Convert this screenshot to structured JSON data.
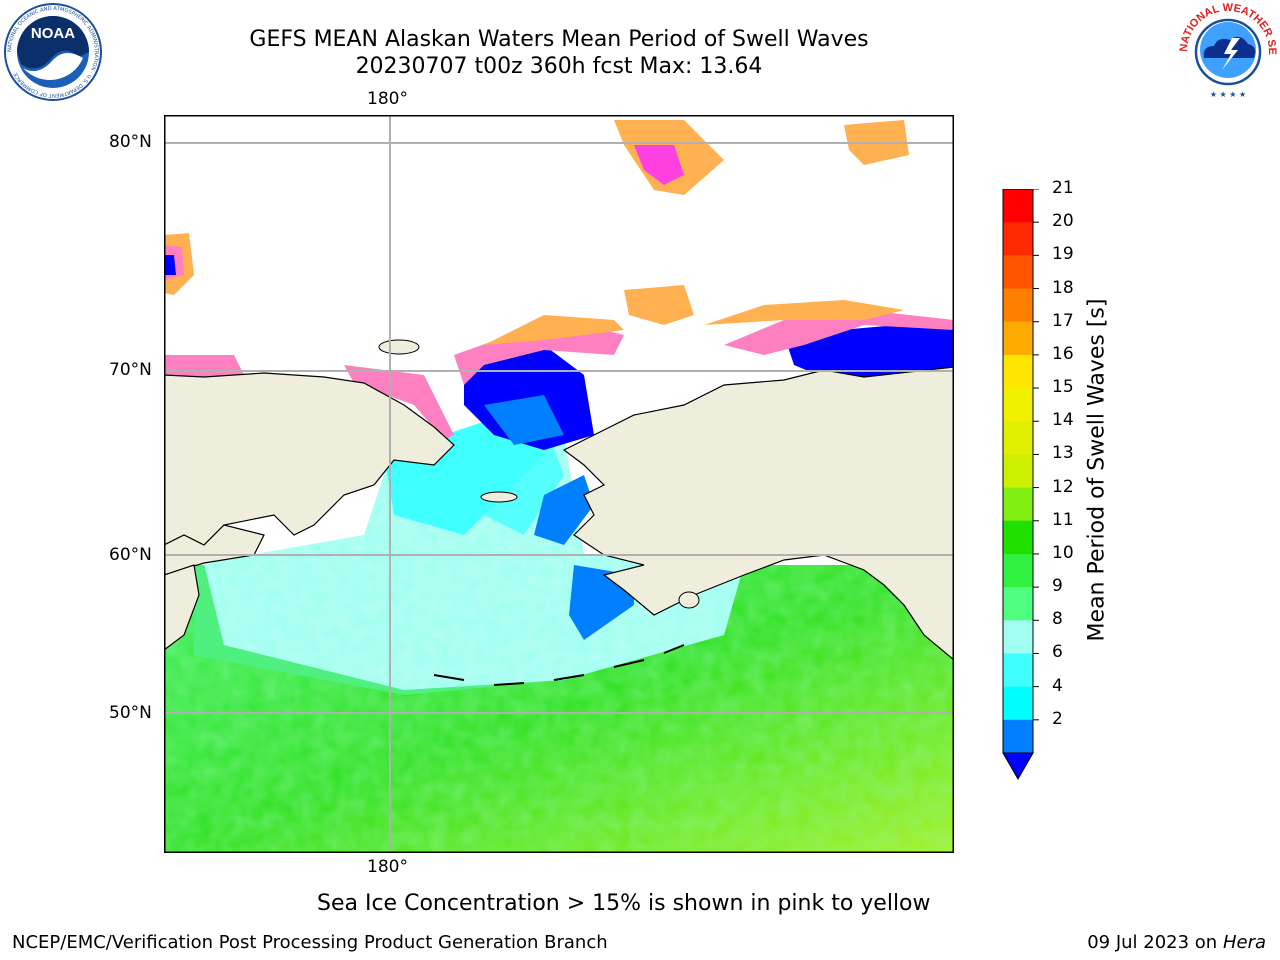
{
  "title": {
    "line1": "GEFS MEAN Alaskan Waters Mean Period of Swell Waves",
    "line2": "20230707 t00z 360h fcst   Max: 13.64"
  },
  "map": {
    "lon_label_top": "180°",
    "lon_label_bottom": "180°",
    "lat_labels": [
      "80°N",
      "70°N",
      "60°N",
      "50°N"
    ],
    "land_color": "#efeddc",
    "grid_color": "#b0b0b0"
  },
  "colorbar": {
    "label": "Mean Period of Swell Waves [s]",
    "ticks": [
      "21",
      "20",
      "19",
      "18",
      "17",
      "16",
      "15",
      "14",
      "13",
      "12",
      "11",
      "10",
      "9",
      "8",
      "6",
      "4",
      "2"
    ],
    "colors": [
      "#ff0000",
      "#ff2a00",
      "#ff5500",
      "#ff8000",
      "#ffaa00",
      "#ffe600",
      "#f0f000",
      "#e0f000",
      "#ccf000",
      "#80ee10",
      "#20e000",
      "#30f040",
      "#50ff80",
      "#a0fff0",
      "#40ffff",
      "#00ffff",
      "#0080ff"
    ],
    "extend_min_color": "#0000ff"
  },
  "caption": "Sea Ice Concentration > 15% is shown in pink to yellow",
  "footer": {
    "left": "NCEP/EMC/Verification Post Processing Product Generation Branch",
    "right_date": "09 Jul 2023 on ",
    "right_machine": "Hera"
  },
  "logos": {
    "noaa_text": "NOAA",
    "noaa_ring": "NATIONAL OCEANIC AND ATMOSPHERIC ADMINISTRATION · U.S. DEPARTMENT OF COMMERCE",
    "nws_ring": "NATIONAL WEATHER SERVICE"
  }
}
